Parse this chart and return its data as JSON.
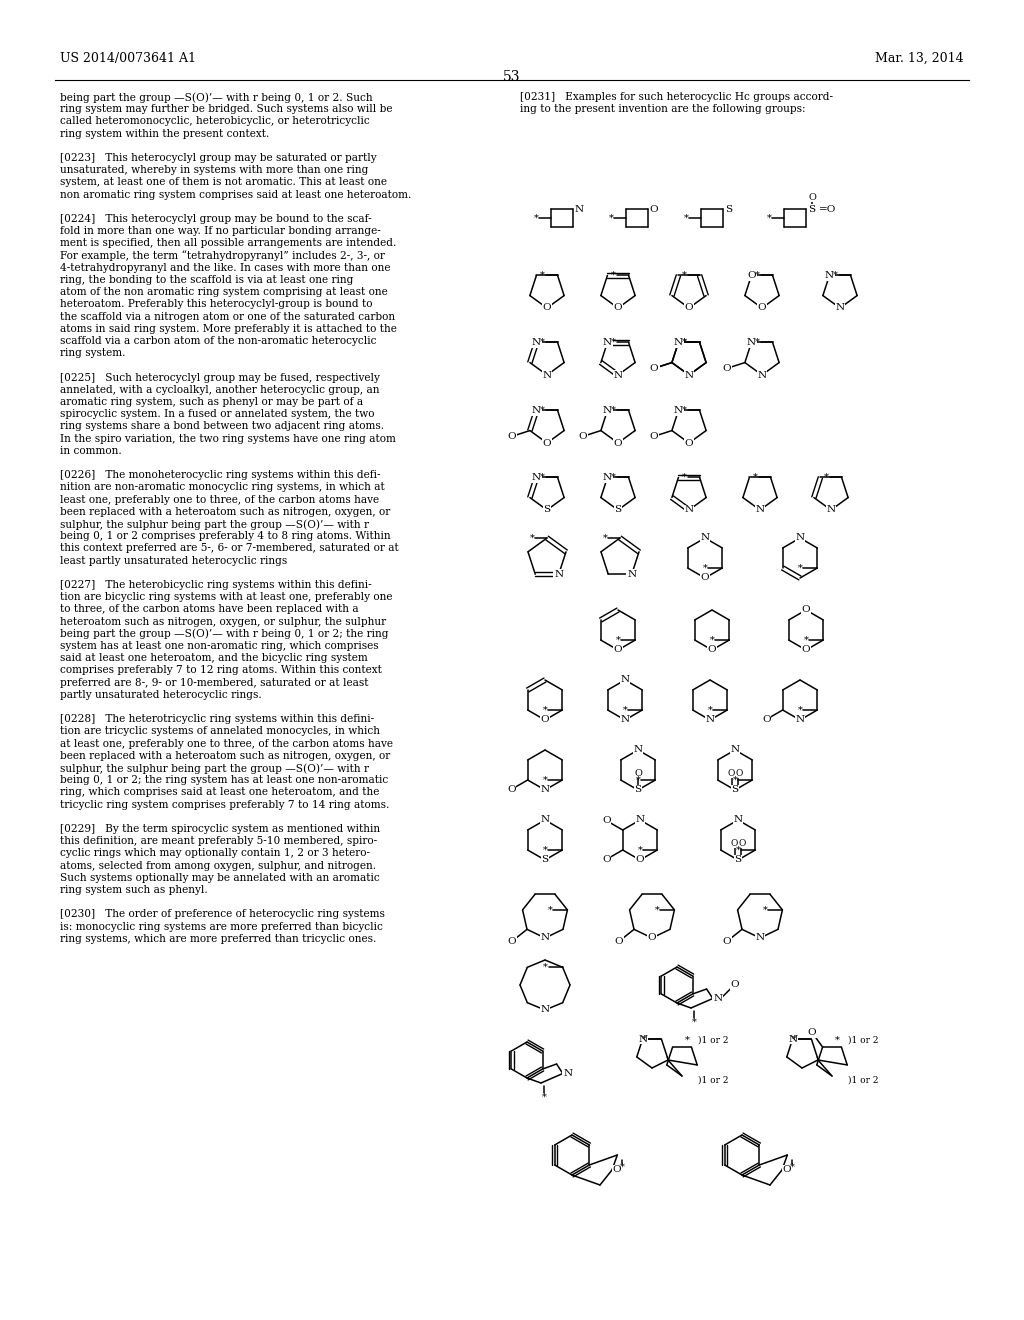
{
  "page_header_left": "US 2014/0073641 A1",
  "page_header_right": "Mar. 13, 2014",
  "page_number": "53",
  "bg": "#ffffff"
}
